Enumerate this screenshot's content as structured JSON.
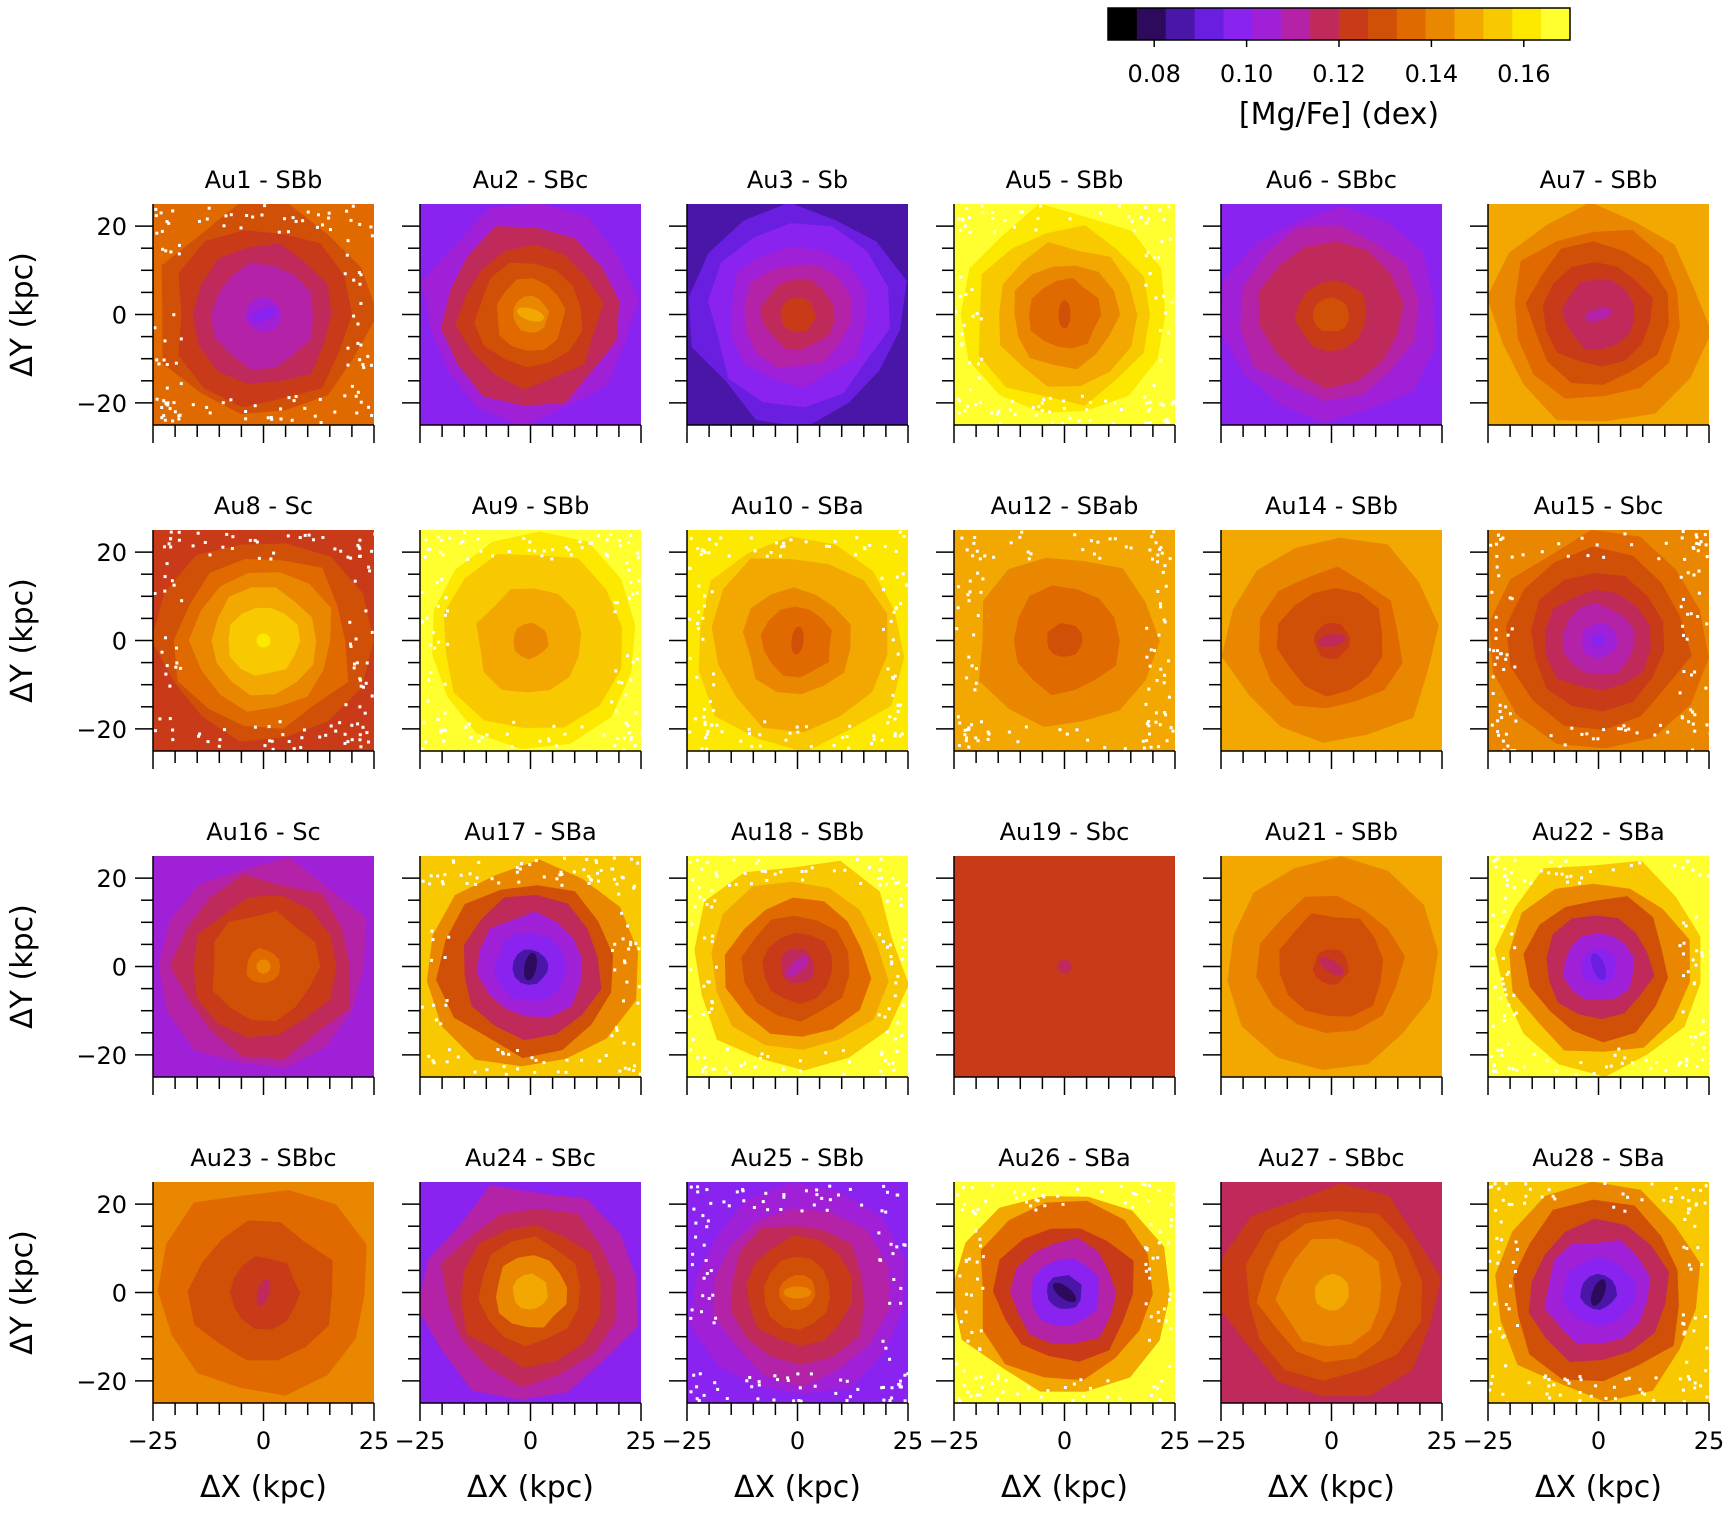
{
  "colorbar": {
    "label": "[Mg/Fe] (dex)",
    "min": 0.07,
    "max": 0.17,
    "ticks": [
      "0.08",
      "0.10",
      "0.12",
      "0.14",
      "0.16"
    ],
    "tick_values": [
      0.08,
      0.1,
      0.12,
      0.14,
      0.16
    ],
    "colormap": [
      "#000000",
      "#2d0a5c",
      "#4a16a8",
      "#6a1ee0",
      "#8a22f0",
      "#a020d8",
      "#b422a8",
      "#c02a5a",
      "#c83a18",
      "#d05008",
      "#e06a00",
      "#e98800",
      "#f2a800",
      "#f8c800",
      "#fde800",
      "#ffff30"
    ]
  },
  "axes": {
    "xlabel": "ΔX (kpc)",
    "ylabel": "ΔY (kpc)",
    "xlim": [
      -25,
      25
    ],
    "ylim": [
      -25,
      25
    ],
    "xticks": [
      "−25",
      "0",
      "25"
    ],
    "yticks": [
      "20",
      "0",
      "−20"
    ],
    "ytick_values": [
      20,
      0,
      -20
    ]
  },
  "chart_data": {
    "type": "heatmap",
    "quantity": "[Mg/Fe] (dex)",
    "panels": [
      {
        "title": "Au1 - SBb",
        "center": 0.1,
        "outer": 0.135,
        "bar": true,
        "missing_outer": true
      },
      {
        "title": "Au2 - SBc",
        "center": 0.15,
        "outer": 0.098,
        "bar": true,
        "missing_outer": false
      },
      {
        "title": "Au3 - Sb",
        "center": 0.125,
        "outer": 0.085,
        "bar": false,
        "missing_outer": false
      },
      {
        "title": "Au5 - SBb",
        "center": 0.13,
        "outer": 0.165,
        "bar": true,
        "missing_outer": true
      },
      {
        "title": "Au6 - SBbc",
        "center": 0.13,
        "outer": 0.1,
        "bar": true,
        "missing_outer": false
      },
      {
        "title": "Au7 - SBb",
        "center": 0.11,
        "outer": 0.15,
        "bar": true,
        "missing_outer": false
      },
      {
        "title": "Au8 - Sc",
        "center": 0.16,
        "outer": 0.125,
        "bar": false,
        "missing_outer": true
      },
      {
        "title": "Au9 - SBb",
        "center": 0.14,
        "outer": 0.165,
        "bar": true,
        "missing_outer": true
      },
      {
        "title": "Au10 - SBa",
        "center": 0.13,
        "outer": 0.16,
        "bar": true,
        "missing_outer": true
      },
      {
        "title": "Au12 - SBab",
        "center": 0.13,
        "outer": 0.15,
        "bar": true,
        "missing_outer": true
      },
      {
        "title": "Au14 - SBb",
        "center": 0.12,
        "outer": 0.15,
        "bar": true,
        "missing_outer": false
      },
      {
        "title": "Au15 - Sbc",
        "center": 0.1,
        "outer": 0.14,
        "bar": false,
        "missing_outer": true
      },
      {
        "title": "Au16 - Sc",
        "center": 0.14,
        "outer": 0.105,
        "bar": false,
        "missing_outer": false
      },
      {
        "title": "Au17 - SBa",
        "center": 0.08,
        "outer": 0.155,
        "bar": true,
        "missing_outer": true
      },
      {
        "title": "Au18 - SBb",
        "center": 0.11,
        "outer": 0.165,
        "bar": true,
        "missing_outer": true
      },
      {
        "title": "Au19 - Sbc",
        "center": 0.12,
        "outer": 0.125,
        "bar": false,
        "missing_outer": false
      },
      {
        "title": "Au21 - SBb",
        "center": 0.12,
        "outer": 0.15,
        "bar": true,
        "missing_outer": false
      },
      {
        "title": "Au22 - SBa",
        "center": 0.09,
        "outer": 0.165,
        "bar": true,
        "missing_outer": true
      },
      {
        "title": "Au23 - SBbc",
        "center": 0.12,
        "outer": 0.14,
        "bar": true,
        "missing_outer": false
      },
      {
        "title": "Au24 - SBc",
        "center": 0.15,
        "outer": 0.1,
        "bar": true,
        "missing_outer": false
      },
      {
        "title": "Au25 - SBb",
        "center": 0.14,
        "outer": 0.1,
        "bar": true,
        "missing_outer": true
      },
      {
        "title": "Au26 - SBa",
        "center": 0.08,
        "outer": 0.165,
        "bar": true,
        "missing_outer": true
      },
      {
        "title": "Au27 - SBbc",
        "center": 0.15,
        "outer": 0.12,
        "bar": true,
        "missing_outer": false
      },
      {
        "title": "Au28 - SBa",
        "center": 0.08,
        "outer": 0.155,
        "bar": true,
        "missing_outer": true
      }
    ]
  }
}
